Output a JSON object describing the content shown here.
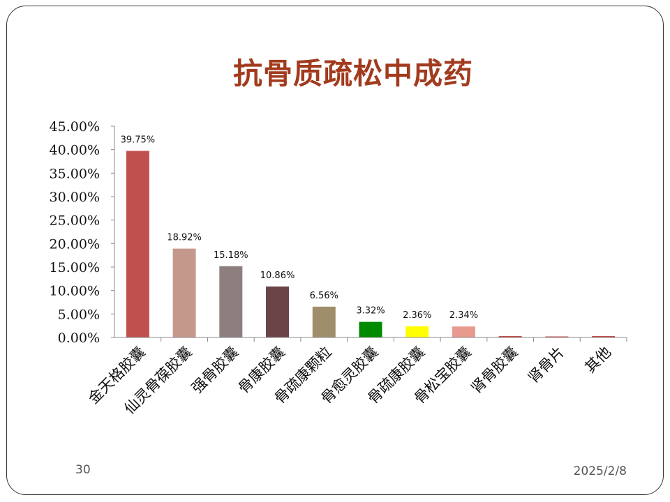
{
  "slide": {
    "page_number": "30",
    "date": "2025/2/8"
  },
  "chart_data": {
    "type": "bar",
    "title": "抗骨质疏松中成药",
    "categories": [
      "金天格胶囊",
      "仙灵骨葆胶囊",
      "强骨胶囊",
      "骨康胶囊",
      "骨疏康颗粒",
      "骨愈灵胶囊",
      "骨疏康胶囊",
      "骨松宝胶囊",
      "肾骨胶囊",
      "肾骨片",
      "其他"
    ],
    "values": [
      39.75,
      18.92,
      15.18,
      10.86,
      6.56,
      3.32,
      2.36,
      2.34,
      0.3,
      0.2,
      0.3
    ],
    "data_labels": [
      "39.75%",
      "18.92%",
      "15.18%",
      "10.86%",
      "6.56%",
      "3.32%",
      "2.36%",
      "2.34%",
      "",
      "",
      ""
    ],
    "colors": [
      "#c0504d",
      "#c4998c",
      "#8e7f7f",
      "#6b4448",
      "#a08e6a",
      "#008a00",
      "#ffff00",
      "#e89a8f",
      "#c0504d",
      "#c0504d",
      "#c0504d"
    ],
    "ylim": [
      0,
      45
    ],
    "yticks": [
      "0.00%",
      "5.00%",
      "10.00%",
      "15.00%",
      "20.00%",
      "25.00%",
      "30.00%",
      "35.00%",
      "40.00%",
      "45.00%"
    ],
    "ytick_values": [
      0,
      5,
      10,
      15,
      20,
      25,
      30,
      35,
      40,
      45
    ],
    "grid": false,
    "legend": "none"
  }
}
